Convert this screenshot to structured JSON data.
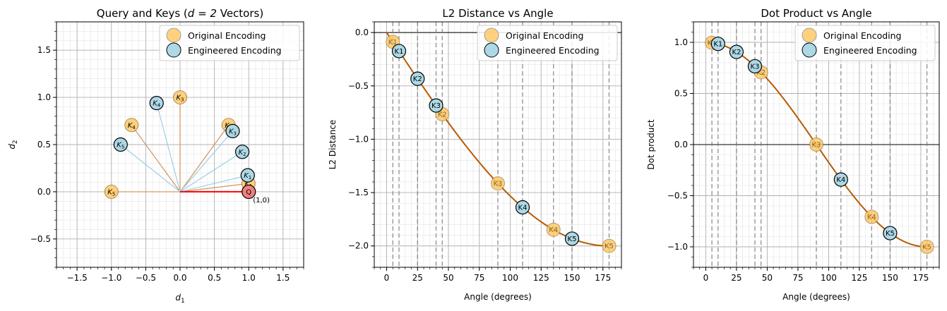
{
  "colors": {
    "original_fill": "#ffc966",
    "engineered_fill": "#add8e6",
    "query_fill": "#f08080",
    "query_line": "#ff0000",
    "original_line": "#d2915a",
    "engineered_line": "#9ccfe6",
    "curve": "#b85a00",
    "grid_major": "#b0b0b0",
    "grid_minor": "#e3e3e3",
    "dashed": "#777777"
  },
  "chart_data": [
    {
      "type": "scatter",
      "title": "Query and Keys (",
      "title_math": "d = 2",
      "title_tail": " Vectors)",
      "xlabel": "d",
      "xlabel_sub": "1",
      "ylabel": "d",
      "ylabel_sub": "2",
      "xlim": [
        -1.8,
        1.8
      ],
      "ylim": [
        -0.8,
        1.8
      ],
      "xticks": [
        -1.5,
        -1.0,
        -0.5,
        0.0,
        0.5,
        1.0,
        1.5
      ],
      "xtick_labels": [
        "−1.5",
        "−1.0",
        "−0.5",
        "0.0",
        "0.5",
        "1.0",
        "1.5"
      ],
      "yticks": [
        -0.5,
        0.0,
        0.5,
        1.0,
        1.5
      ],
      "ytick_labels": [
        "−0.5",
        "0.0",
        "0.5",
        "1.0",
        "1.5"
      ],
      "legend": [
        "Original Encoding",
        "Engineered Encoding"
      ],
      "legend_position": "top-right",
      "query": {
        "label": "Q",
        "x": 1.0,
        "y": 0.0,
        "annotation": "(1,0)"
      },
      "original": [
        {
          "label": "K",
          "sub": "1",
          "x": 0.996,
          "y": 0.087
        },
        {
          "label": "K",
          "sub": "2",
          "x": 0.707,
          "y": 0.707
        },
        {
          "label": "K",
          "sub": "3",
          "x": 0.0,
          "y": 1.0
        },
        {
          "label": "K",
          "sub": "4",
          "x": -0.707,
          "y": 0.707
        },
        {
          "label": "K",
          "sub": "5",
          "x": -1.0,
          "y": 0.0
        }
      ],
      "engineered": [
        {
          "label": "K",
          "sub": "1",
          "x": 0.985,
          "y": 0.174
        },
        {
          "label": "K",
          "sub": "2",
          "x": 0.906,
          "y": 0.423
        },
        {
          "label": "K",
          "sub": "3",
          "x": 0.766,
          "y": 0.643
        },
        {
          "label": "K",
          "sub": "4",
          "x": -0.342,
          "y": 0.94
        },
        {
          "label": "K",
          "sub": "5",
          "x": -0.866,
          "y": 0.5
        }
      ]
    },
    {
      "type": "line",
      "title": "L2 Distance vs Angle",
      "xlabel": "Angle (degrees)",
      "ylabel": "L2 Distance",
      "xlim": [
        -10,
        190
      ],
      "ylim": [
        -2.2,
        0.1
      ],
      "xticks": [
        0,
        25,
        50,
        75,
        100,
        125,
        150,
        175
      ],
      "xtick_labels": [
        "0",
        "25",
        "50",
        "75",
        "100",
        "125",
        "150",
        "175"
      ],
      "yticks": [
        -2.0,
        -1.5,
        -1.0,
        -0.5,
        0.0
      ],
      "ytick_labels": [
        "−2.0",
        "−1.5",
        "−1.0",
        "−0.5",
        "0.0"
      ],
      "zero_line": true,
      "curve": "-(2 - 2cos(angle))^0.5",
      "legend": [
        "Original Encoding",
        "Engineered Encoding"
      ],
      "legend_position": "top-right",
      "original": [
        {
          "label": "K1",
          "x": 5,
          "y": -0.087
        },
        {
          "label": "K2",
          "x": 45,
          "y": -0.765
        },
        {
          "label": "K3",
          "x": 90,
          "y": -1.414
        },
        {
          "label": "K4",
          "x": 135,
          "y": -1.848
        },
        {
          "label": "K5",
          "x": 180,
          "y": -2.0
        }
      ],
      "engineered": [
        {
          "label": "K1",
          "x": 10,
          "y": -0.174
        },
        {
          "label": "K2",
          "x": 25,
          "y": -0.433
        },
        {
          "label": "K3",
          "x": 40,
          "y": -0.684
        },
        {
          "label": "K4",
          "x": 110,
          "y": -1.638
        },
        {
          "label": "K5",
          "x": 150,
          "y": -1.932
        }
      ]
    },
    {
      "type": "line",
      "title": "Dot Product vs Angle",
      "xlabel": "Angle (degrees)",
      "ylabel": "Dot product",
      "xlim": [
        -10,
        190
      ],
      "ylim": [
        -1.2,
        1.2
      ],
      "xticks": [
        0,
        25,
        50,
        75,
        100,
        125,
        150,
        175
      ],
      "xtick_labels": [
        "0",
        "25",
        "50",
        "75",
        "100",
        "125",
        "150",
        "175"
      ],
      "yticks": [
        -1.0,
        -0.5,
        0.0,
        0.5,
        1.0
      ],
      "ytick_labels": [
        "−1.0",
        "−0.5",
        "0.0",
        "0.5",
        "1.0"
      ],
      "zero_line": true,
      "curve": "cos(angle)",
      "legend": [
        "Original Encoding",
        "Engineered Encoding"
      ],
      "legend_position": "top-right",
      "original": [
        {
          "label": "K1",
          "x": 5,
          "y": 0.996
        },
        {
          "label": "K2",
          "x": 45,
          "y": 0.707
        },
        {
          "label": "K3",
          "x": 90,
          "y": 0.0
        },
        {
          "label": "K4",
          "x": 135,
          "y": -0.707
        },
        {
          "label": "K5",
          "x": 180,
          "y": -1.0
        }
      ],
      "engineered": [
        {
          "label": "K1",
          "x": 10,
          "y": 0.985
        },
        {
          "label": "K2",
          "x": 25,
          "y": 0.906
        },
        {
          "label": "K3",
          "x": 40,
          "y": 0.766
        },
        {
          "label": "K4",
          "x": 110,
          "y": -0.342
        },
        {
          "label": "K5",
          "x": 150,
          "y": -0.866
        }
      ]
    }
  ]
}
